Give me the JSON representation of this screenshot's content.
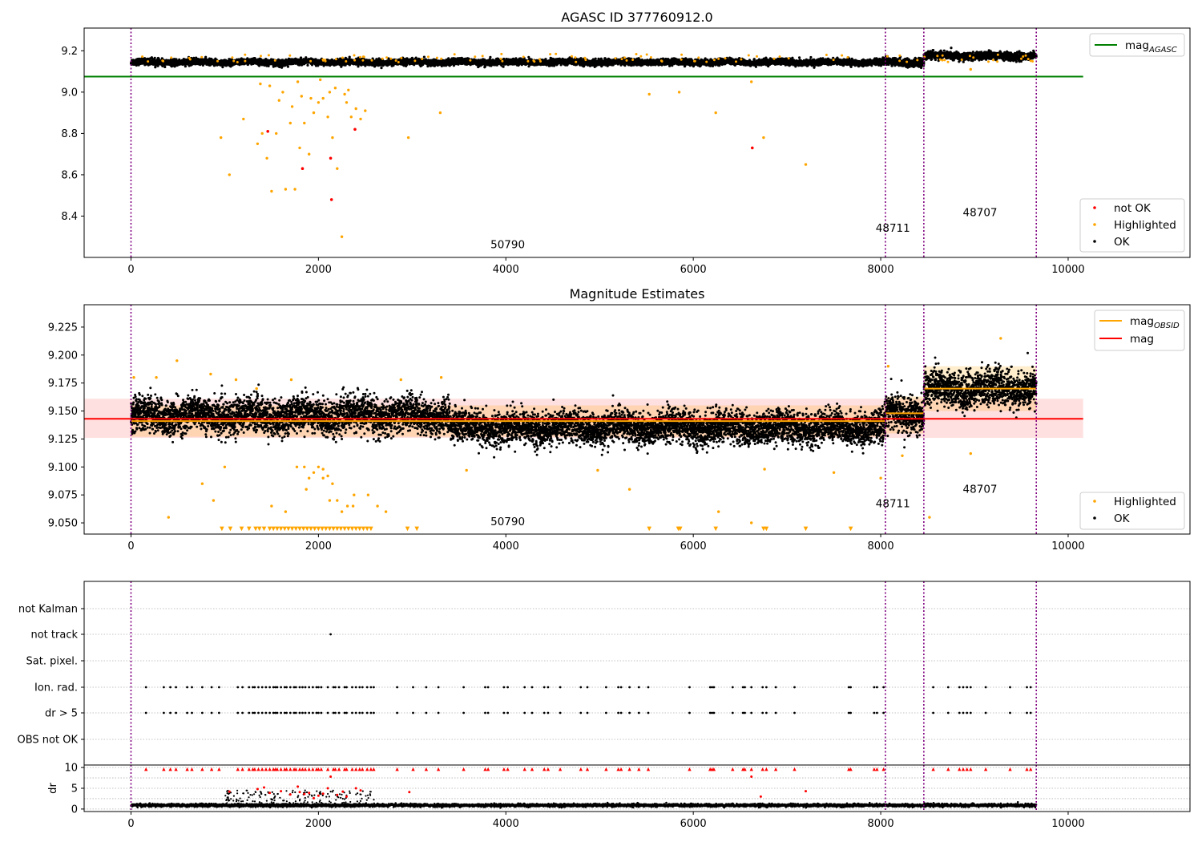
{
  "chart_data": [
    {
      "type": "scatter",
      "title": "AGASC ID 377760912.0",
      "xlim": [
        -500,
        11300
      ],
      "ylim": [
        8.2,
        9.31
      ],
      "xticks": [
        0,
        2000,
        4000,
        6000,
        8000,
        10000
      ],
      "yticks": [
        8.4,
        8.6,
        8.8,
        9.0,
        9.2
      ],
      "ytick_labels": [
        "8.4",
        "8.6",
        "8.8",
        "9.0",
        "9.2"
      ],
      "legend_position": "upper-right / lower-right",
      "obsid_boundaries": [
        0,
        8050,
        8460,
        9660
      ],
      "obsid_labels": [
        {
          "text": "50790",
          "x": 4020,
          "y": 8.245
        },
        {
          "text": "48711",
          "x": 8130,
          "y": 8.325
        },
        {
          "text": "48707",
          "x": 9060,
          "y": 8.4
        }
      ],
      "lines": [
        {
          "name": "mag_AGASC",
          "color": "#008000",
          "x": [
            -500,
            10160
          ],
          "y": [
            9.075,
            9.075
          ]
        }
      ],
      "series": [
        {
          "name": "OK",
          "color": "#000000",
          "segments": [
            {
              "x0": 0,
              "x1": 8050,
              "level": 9.145,
              "noise": 0.012
            },
            {
              "x0": 8050,
              "x1": 8460,
              "level": 9.145,
              "noise": 0.015
            },
            {
              "x0": 8460,
              "x1": 9660,
              "level": 9.175,
              "noise": 0.015
            }
          ]
        },
        {
          "name": "Highlighted",
          "color": "#ffa500",
          "x": [
            960,
            1050,
            1200,
            1350,
            1400,
            1450,
            1500,
            1550,
            1580,
            1650,
            1700,
            1750,
            1800,
            1850,
            1900,
            1950,
            2000,
            2050,
            2100,
            2150,
            2200,
            2250,
            2300,
            2350,
            2400,
            2450,
            2500,
            1380,
            1620,
            1780,
            1820,
            2020,
            2180,
            2280,
            1480,
            1720,
            1920,
            2120,
            2320,
            2960,
            3300,
            5530,
            5850,
            6240,
            6620,
            6750,
            7200,
            8960
          ],
          "y": [
            8.78,
            8.6,
            8.87,
            8.75,
            8.8,
            8.68,
            8.52,
            8.8,
            8.96,
            8.53,
            8.85,
            8.53,
            8.73,
            8.85,
            8.7,
            8.9,
            8.95,
            8.97,
            8.88,
            8.78,
            8.63,
            8.3,
            8.95,
            8.88,
            8.92,
            8.87,
            8.91,
            9.04,
            9.0,
            9.05,
            8.98,
            9.06,
            9.02,
            8.99,
            9.03,
            8.93,
            8.97,
            9.0,
            9.01,
            8.78,
            8.9,
            8.99,
            9.0,
            8.9,
            9.05,
            8.78,
            8.65,
            9.11
          ]
        },
        {
          "name": "not OK",
          "color": "#ff0000",
          "x": [
            1460,
            1830,
            2130,
            2140,
            2390,
            6630
          ],
          "y": [
            8.81,
            8.63,
            8.68,
            8.48,
            8.82,
            8.73
          ]
        }
      ],
      "legend_top": [
        "mag_AGASC"
      ],
      "legend_bottom": [
        "not OK",
        "Highlighted",
        "OK"
      ]
    },
    {
      "type": "scatter",
      "title": "Magnitude Estimates",
      "xlim": [
        -500,
        11300
      ],
      "ylim": [
        9.04,
        9.245
      ],
      "xticks": [
        0,
        2000,
        4000,
        6000,
        8000,
        10000
      ],
      "yticks": [
        9.05,
        9.075,
        9.1,
        9.125,
        9.15,
        9.175,
        9.2,
        9.225
      ],
      "ytick_labels": [
        "9.050",
        "9.075",
        "9.100",
        "9.125",
        "9.150",
        "9.175",
        "9.200",
        "9.225"
      ],
      "obsid_boundaries": [
        0,
        8050,
        8460,
        9660
      ],
      "obsid_labels": [
        {
          "text": "50790",
          "x": 4020,
          "y": 9.048
        },
        {
          "text": "48711",
          "x": 8130,
          "y": 9.064
        },
        {
          "text": "48707",
          "x": 9060,
          "y": 9.077
        }
      ],
      "lines": [
        {
          "name": "mag",
          "color": "#ff0000",
          "x": [
            -500,
            10160
          ],
          "y": [
            9.143,
            9.143
          ]
        },
        {
          "name": "mag_OBSID",
          "color": "#ffa500",
          "x": [
            0,
            8050
          ],
          "y": [
            9.141,
            9.141
          ]
        },
        {
          "name": "mag_OBSID",
          "color": "#ffa500",
          "x": [
            8050,
            8460
          ],
          "y": [
            9.148,
            9.148
          ]
        },
        {
          "name": "mag_OBSID",
          "color": "#ffa500",
          "x": [
            8460,
            9660
          ],
          "y": [
            9.17,
            9.17
          ]
        }
      ],
      "bands": [
        {
          "color": "#ff0000",
          "alpha": 0.12,
          "x": [
            -500,
            10160
          ],
          "y": [
            9.126,
            9.161
          ]
        },
        {
          "color": "#ffa500",
          "alpha": 0.2,
          "x": [
            0,
            8050
          ],
          "y": [
            9.127,
            9.155
          ]
        },
        {
          "color": "#ffa500",
          "alpha": 0.2,
          "x": [
            8050,
            8460
          ],
          "y": [
            9.13,
            9.163
          ]
        },
        {
          "color": "#ffa500",
          "alpha": 0.2,
          "x": [
            8460,
            9660
          ],
          "y": [
            9.15,
            9.19
          ]
        }
      ],
      "series": [
        {
          "name": "OK",
          "color": "#000000",
          "segments": [
            {
              "x0": 0,
              "x1": 3400,
              "level": 9.146,
              "noise": 0.013
            },
            {
              "x0": 3400,
              "x1": 8050,
              "level": 9.135,
              "noise": 0.012
            },
            {
              "x0": 8050,
              "x1": 8460,
              "level": 9.148,
              "noise": 0.014
            },
            {
              "x0": 8460,
              "x1": 9660,
              "level": 9.17,
              "noise": 0.013
            }
          ]
        },
        {
          "name": "Highlighted",
          "color": "#ffa500",
          "x": [
            30,
            270,
            490,
            850,
            1120,
            1340,
            1710,
            1770,
            1850,
            1900,
            1950,
            2000,
            2050,
            2100,
            2150,
            2200,
            2250,
            2310,
            2380,
            2530,
            2720,
            2880,
            3310,
            3580,
            4980,
            5320,
            6270,
            6620,
            6760,
            7500,
            8000,
            8080,
            8230,
            8520,
            8960,
            9280,
            400,
            760,
            880,
            1000,
            1500,
            1650,
            1870,
            2050,
            2120,
            2370,
            2630
          ],
          "y": [
            9.18,
            9.18,
            9.195,
            9.183,
            9.178,
            9.17,
            9.178,
            9.1,
            9.1,
            9.09,
            9.095,
            9.1,
            9.098,
            9.092,
            9.085,
            9.07,
            9.06,
            9.065,
            9.075,
            9.075,
            9.06,
            9.178,
            9.18,
            9.097,
            9.097,
            9.08,
            9.06,
            9.05,
            9.098,
            9.095,
            9.09,
            9.19,
            9.11,
            9.055,
            9.112,
            9.215,
            9.055,
            9.085,
            9.07,
            9.1,
            9.065,
            9.06,
            9.08,
            9.09,
            9.07,
            9.065,
            9.065
          ]
        },
        {
          "name": "Highlighted-floor",
          "color": "#ffa500",
          "marker": "triangle",
          "x": [
            970,
            1060,
            1180,
            1260,
            1330,
            1370,
            1420,
            1480,
            1520,
            1560,
            1600,
            1640,
            1680,
            1720,
            1760,
            1800,
            1840,
            1880,
            1920,
            1960,
            2000,
            2040,
            2080,
            2120,
            2160,
            2200,
            2240,
            2280,
            2320,
            2360,
            2400,
            2440,
            2480,
            2520,
            2560,
            2950,
            3050,
            5530,
            5840,
            5860,
            6240,
            6750,
            6780,
            7200,
            7680
          ],
          "y": [
            9.044,
            9.044,
            9.044,
            9.044,
            9.044,
            9.044,
            9.044,
            9.044,
            9.044,
            9.044,
            9.044,
            9.044,
            9.044,
            9.044,
            9.044,
            9.044,
            9.044,
            9.044,
            9.044,
            9.044,
            9.044,
            9.044,
            9.044,
            9.044,
            9.044,
            9.044,
            9.044,
            9.044,
            9.044,
            9.044,
            9.044,
            9.044,
            9.044,
            9.044,
            9.044,
            9.044,
            9.044,
            9.044,
            9.044,
            9.044,
            9.044,
            9.044,
            9.044,
            9.044,
            9.044
          ]
        }
      ],
      "legend_top": [
        "mag_OBSID",
        "mag"
      ],
      "legend_bottom": [
        "Highlighted",
        "OK"
      ]
    },
    {
      "type": "scatter",
      "xlim": [
        -500,
        11300
      ],
      "categories": [
        "not Kalman",
        "not track",
        "Sat. pixel.",
        "Ion. rad.",
        "dr > 5",
        "OBS not OK"
      ],
      "obsid_boundaries": [
        0,
        8050,
        8460,
        9660
      ],
      "flag_rows": [
        {
          "label": "not track",
          "x": [
            2130
          ]
        },
        {
          "label": "Ion. rad.",
          "x": [
            160,
            350,
            420,
            480,
            600,
            650,
            760,
            860,
            940,
            1140,
            1190,
            1260,
            1300,
            1320,
            1360,
            1400,
            1440,
            1480,
            1520,
            1540,
            1560,
            1600,
            1640,
            1660,
            1700,
            1740,
            1760,
            1800,
            1830,
            1860,
            1900,
            1940,
            1980,
            2000,
            2030,
            2100,
            2160,
            2180,
            2220,
            2280,
            2300,
            2360,
            2400,
            2440,
            2470,
            2520,
            2560,
            2590,
            2840,
            3010,
            3150,
            3280,
            3550,
            3780,
            3810,
            3980,
            4020,
            4200,
            4280,
            4410,
            4450,
            4580,
            4800,
            4870,
            5070,
            5200,
            5230,
            5320,
            5420,
            5520,
            5960,
            6180,
            6200,
            6220,
            6420,
            6530,
            6550,
            6620,
            6740,
            6780,
            6880,
            7080,
            7660,
            7680,
            7930,
            7960,
            8030,
            8560,
            8720,
            8840,
            8880,
            8920,
            8960,
            9120,
            9380,
            9560,
            9600
          ]
        },
        {
          "label": "dr > 5",
          "x": [
            160,
            350,
            420,
            480,
            600,
            650,
            760,
            860,
            940,
            1140,
            1190,
            1260,
            1300,
            1320,
            1360,
            1400,
            1440,
            1480,
            1520,
            1540,
            1560,
            1600,
            1640,
            1660,
            1700,
            1740,
            1760,
            1800,
            1830,
            1860,
            1900,
            1940,
            1980,
            2000,
            2030,
            2100,
            2160,
            2180,
            2220,
            2280,
            2300,
            2360,
            2400,
            2440,
            2470,
            2520,
            2560,
            2590,
            2840,
            3010,
            3150,
            3280,
            3550,
            3780,
            3810,
            3980,
            4020,
            4200,
            4280,
            4410,
            4450,
            4580,
            4800,
            4870,
            5070,
            5200,
            5230,
            5320,
            5420,
            5520,
            5960,
            6180,
            6200,
            6220,
            6420,
            6530,
            6550,
            6620,
            6740,
            6780,
            6880,
            7080,
            7660,
            7680,
            7930,
            7960,
            8030,
            8560,
            8720,
            8840,
            8880,
            8920,
            8960,
            9120,
            9380,
            9560,
            9600
          ]
        }
      ]
    },
    {
      "type": "scatter",
      "ylabel": "dr",
      "xlim": [
        -500,
        11300
      ],
      "ylim": [
        -0.6,
        10.6
      ],
      "xticks": [
        0,
        2000,
        4000,
        6000,
        8000,
        10000
      ],
      "yticks": [
        0,
        5,
        10
      ],
      "ytick_labels": [
        "0",
        "5",
        "10"
      ],
      "obsid_boundaries": [
        0,
        8050,
        8460,
        9660
      ],
      "series": [
        {
          "name": "dr",
          "color": "#000000",
          "level": 0.9,
          "noise": 0.35,
          "x_range": [
            0,
            9660
          ]
        },
        {
          "name": "dr-bump",
          "color": "#000000",
          "x_range": [
            1000,
            2600
          ],
          "y_range": [
            1.2,
            4.5
          ]
        },
        {
          "name": "dr-high",
          "color": "#ff0000",
          "x": [
            1050,
            1350,
            1420,
            1480,
            1600,
            1700,
            1780,
            1800,
            1850,
            1900,
            1950,
            2000,
            2050,
            2100,
            2130,
            2200,
            2260,
            2300,
            2400,
            2450,
            2970,
            6620,
            6720,
            7200
          ],
          "y": [
            4.2,
            4.8,
            5.2,
            3.9,
            4.3,
            3.5,
            5.4,
            4.1,
            3.6,
            3.9,
            2.6,
            3.2,
            3.7,
            5.0,
            7.8,
            3.4,
            4.2,
            3.0,
            5.0,
            4.5,
            4.1,
            7.8,
            3.0,
            4.3
          ]
        },
        {
          "name": "dr-capped",
          "color": "#ff0000",
          "marker": "triangle",
          "x": [
            160,
            350,
            420,
            480,
            600,
            650,
            760,
            860,
            940,
            1140,
            1190,
            1260,
            1300,
            1320,
            1360,
            1400,
            1440,
            1480,
            1520,
            1540,
            1560,
            1600,
            1640,
            1660,
            1700,
            1740,
            1760,
            1800,
            1830,
            1860,
            1900,
            1940,
            1980,
            2000,
            2030,
            2100,
            2160,
            2180,
            2220,
            2280,
            2300,
            2360,
            2400,
            2440,
            2470,
            2520,
            2560,
            2590,
            2840,
            3010,
            3150,
            3280,
            3550,
            3780,
            3810,
            3980,
            4020,
            4200,
            4280,
            4410,
            4450,
            4580,
            4800,
            4870,
            5070,
            5200,
            5230,
            5320,
            5420,
            5520,
            5960,
            6180,
            6200,
            6220,
            6420,
            6530,
            6550,
            6620,
            6740,
            6780,
            6880,
            7080,
            7660,
            7680,
            7930,
            7960,
            8030,
            8560,
            8720,
            8840,
            8880,
            8920,
            8960,
            9120,
            9380,
            9560,
            9600
          ],
          "y": 9.6
        }
      ]
    }
  ]
}
